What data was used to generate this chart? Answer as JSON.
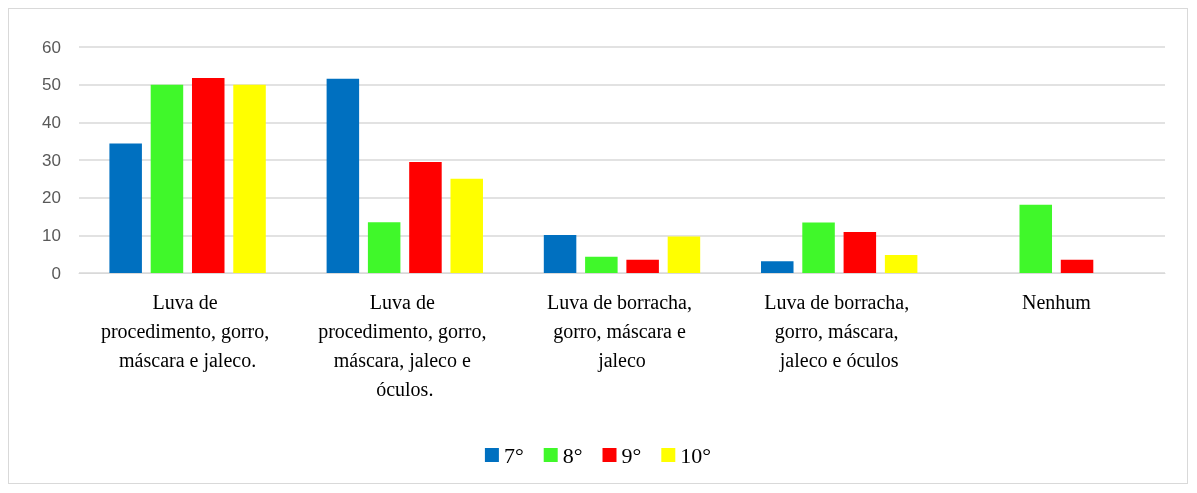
{
  "chart_data": {
    "type": "bar",
    "categories": [
      "Luva de procedimento, gorro, máscara e jaleco.",
      "Luva de procedimento, gorro, máscara, jaleco e óculos.",
      "Luva de borracha, gorro, máscara e jaleco",
      "Luva de borracha, gorro, máscara, jaleco e óculos",
      "Nenhum"
    ],
    "series": [
      {
        "name": "7°",
        "color": "#0070c0",
        "values": [
          34.4,
          51.6,
          10.1,
          3.1,
          null
        ]
      },
      {
        "name": "8°",
        "color": "#40f82a",
        "values": [
          50,
          13.5,
          4.3,
          13.4,
          18.1
        ]
      },
      {
        "name": "9°",
        "color": "#ff0000",
        "values": [
          51.8,
          29.5,
          3.5,
          10.9,
          3.5
        ]
      },
      {
        "name": "10°",
        "color": "#ffff00",
        "values": [
          50,
          25,
          9.7,
          4.8,
          null
        ]
      }
    ],
    "ylim": [
      0,
      60
    ],
    "yticks": [
      0,
      10,
      20,
      30,
      40,
      50,
      60
    ],
    "grid": "y",
    "legend": "bottom"
  }
}
